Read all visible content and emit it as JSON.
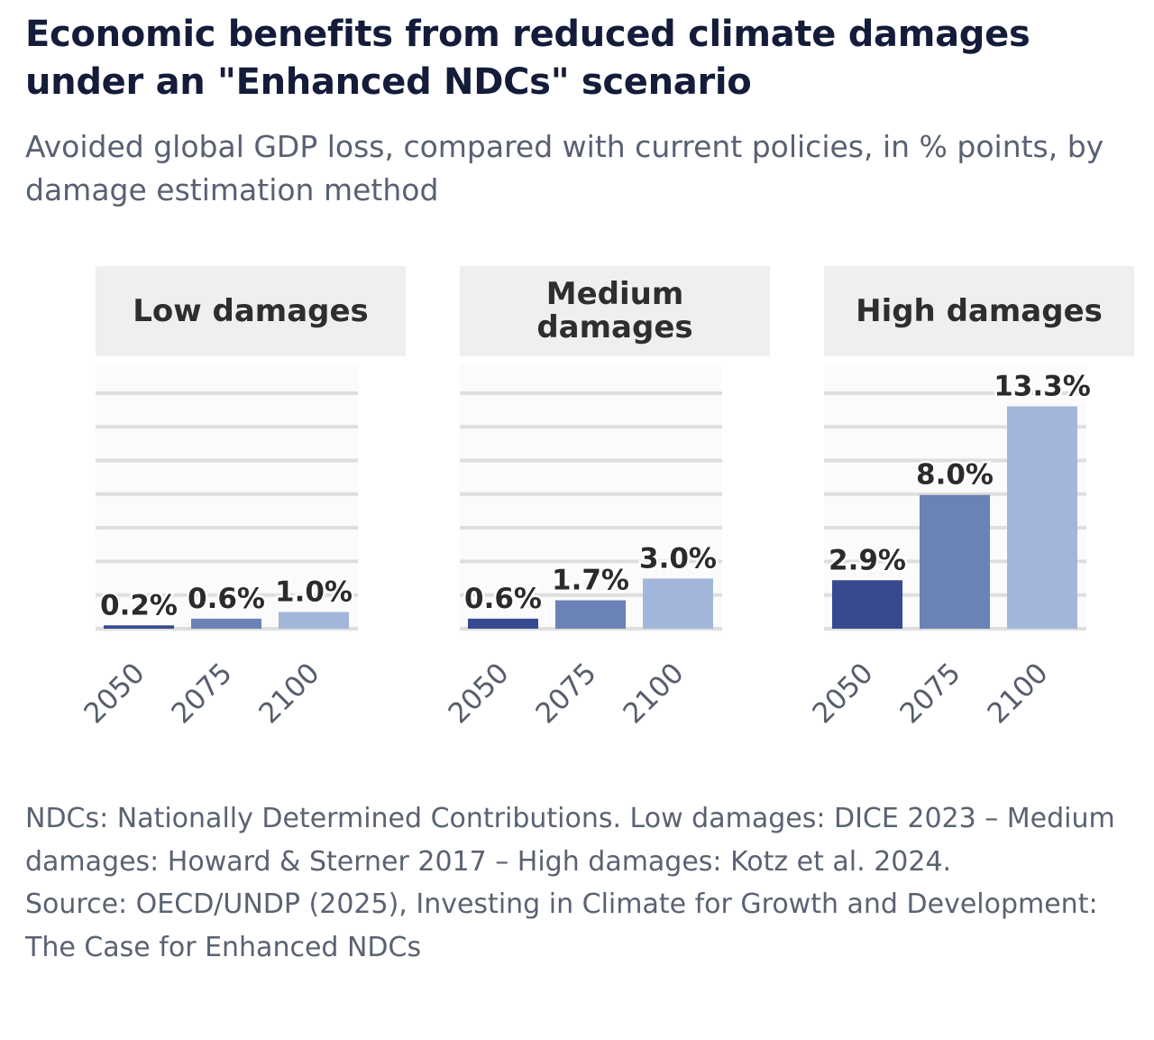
{
  "title": "Economic benefits from reduced climate damages under an \"Enhanced NDCs\" scenario",
  "subtitle": "Avoided global GDP loss, compared with current policies, in % points, by damage estimation method",
  "notes": {
    "definitions": "NDCs: Nationally Determined Contributions. Low damages: DICE 2023 – Medium damages: Howard & Sterner 2017 – High damages: Kotz et al. 2024.",
    "source": "Source: OECD/UNDP (2025), Investing in Climate for Growth and Development: The Case for Enhanced NDCs"
  },
  "chart_data": {
    "type": "bar",
    "title": "Economic benefits from reduced climate damages under an \"Enhanced NDCs\" scenario",
    "subtitle": "Avoided global GDP loss, compared with current policies, in % points, by damage estimation method",
    "xlabel": "",
    "ylabel": "Avoided global GDP loss (% points)",
    "categories": [
      "2050",
      "2075",
      "2100"
    ],
    "ylim": [
      0,
      15
    ],
    "grid": true,
    "colors": {
      "2050": "#374a8f",
      "2075": "#6a82b6",
      "2100": "#a2b6da"
    },
    "panels": [
      {
        "name": "Low damages",
        "values": [
          0.2,
          0.6,
          1.0
        ],
        "labels": [
          "0.2%",
          "0.6%",
          "1.0%"
        ]
      },
      {
        "name": "Medium damages",
        "values": [
          0.6,
          1.7,
          3.0
        ],
        "labels": [
          "0.6%",
          "1.7%",
          "3.0%"
        ]
      },
      {
        "name": "High damages",
        "values": [
          2.9,
          8.0,
          13.3
        ],
        "labels": [
          "2.9%",
          "8.0%",
          "13.3%"
        ]
      }
    ]
  }
}
